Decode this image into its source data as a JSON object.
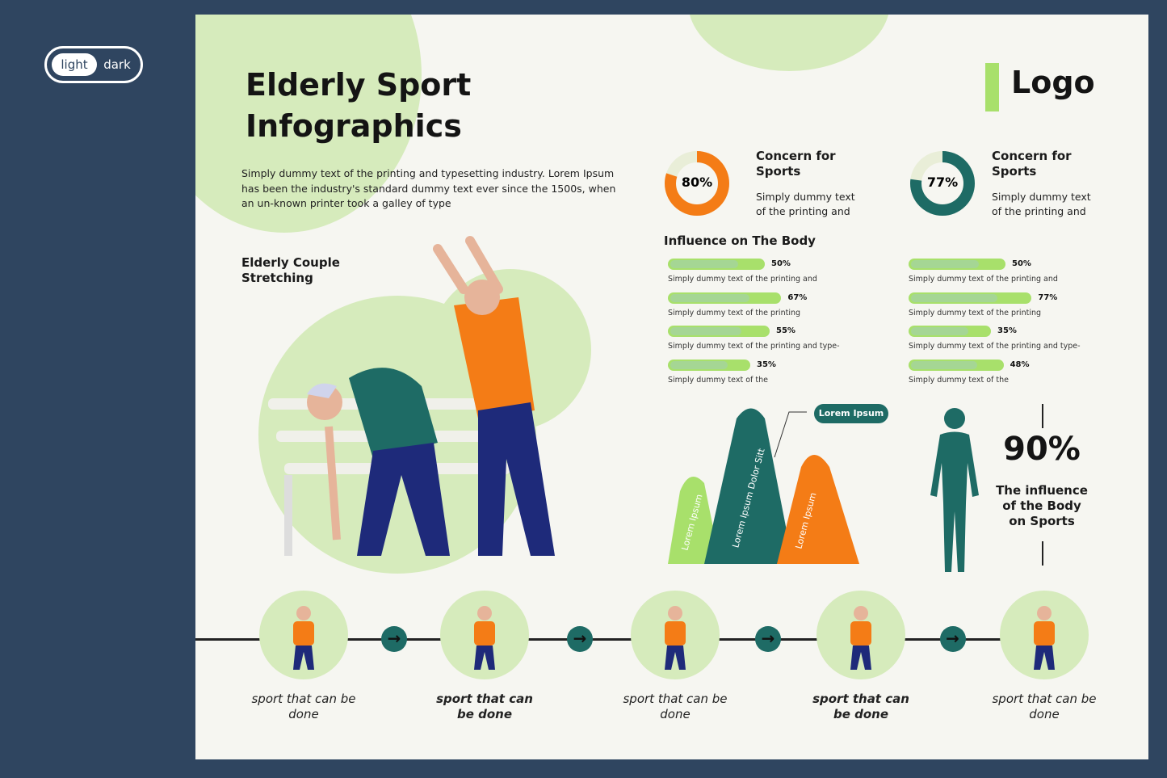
{
  "theme_toggle": {
    "light": "light",
    "dark": "dark",
    "selected": "light"
  },
  "title_line1": "Elderly Sport",
  "title_line2": "Infographics",
  "logo": "Logo",
  "intro": "Simply dummy text of the printing and typesetting industry. Lorem Ipsum has been the industry's standard dummy text ever since the 1500s, when an un-known printer took a galley of type",
  "illustration_title": "Elderly Couple Stretching",
  "concerns": [
    {
      "value": "80%",
      "percent": 80,
      "title": "Concern for Sports",
      "text": "Simply dummy text of the printing and",
      "color": "#f47c16"
    },
    {
      "value": "77%",
      "percent": 77,
      "title": "Concern for Sports",
      "text": "Simply dummy text of the printing and",
      "color": "#1e6b65"
    }
  ],
  "influence_title": "Influence on The Body",
  "bars_left": [
    {
      "value": "50%",
      "percent": 50,
      "text": "Simply dummy text of the printing and"
    },
    {
      "value": "67%",
      "percent": 67,
      "text": "Simply dummy text of the printing"
    },
    {
      "value": "55%",
      "percent": 55,
      "text": "Simply dummy text of the printing and type-"
    },
    {
      "value": "35%",
      "percent": 35,
      "text": "Simply dummy text of the"
    }
  ],
  "bars_right": [
    {
      "value": "50%",
      "percent": 50,
      "text": "Simply dummy text of the printing and"
    },
    {
      "value": "77%",
      "percent": 77,
      "text": "Simply dummy text of the printing"
    },
    {
      "value": "35%",
      "percent": 35,
      "text": "Simply dummy text of the printing and type-"
    },
    {
      "value": "48%",
      "percent": 48,
      "text": "Simply dummy text of the"
    }
  ],
  "mountains": {
    "callout": "Lorem Ipsum",
    "labels": [
      "Lorem Ipsum",
      "Lorem Ipsum Dolor Sitt",
      "Lorem Ipsum"
    ]
  },
  "body_stat": {
    "value": "90%",
    "text": "The influence of the Body on Sports"
  },
  "steps": [
    {
      "label": "sport that can be done",
      "bold": false
    },
    {
      "label": "sport that can be done",
      "bold": true
    },
    {
      "label": "sport that can be done",
      "bold": false
    },
    {
      "label": "sport that can be done",
      "bold": true
    },
    {
      "label": "sport that can be done",
      "bold": false
    }
  ],
  "colors": {
    "orange": "#f47c16",
    "teal": "#1e6b65",
    "lime": "#a8e06b",
    "light_green": "#d6ebbc",
    "navy": "#1e2a7a",
    "background": "#2f4560"
  }
}
